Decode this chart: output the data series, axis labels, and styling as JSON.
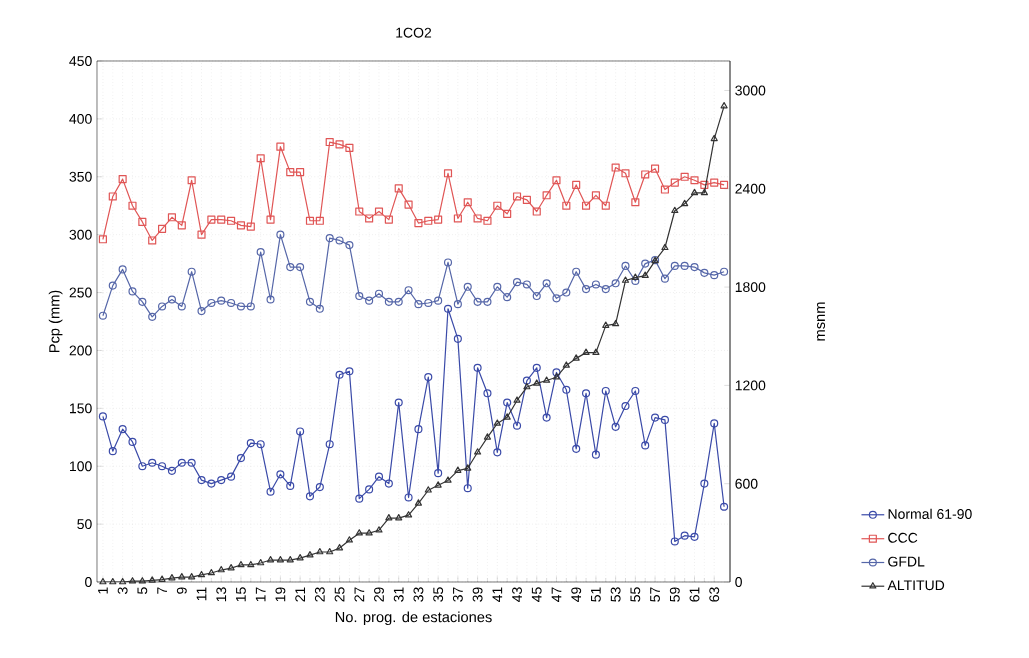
{
  "chart_data": {
    "type": "line",
    "title": "1CO2",
    "xlabel": "No. prog. de estaciones",
    "ylabel": "Pcp (mm)",
    "y2label": "msnm",
    "x": [
      1,
      2,
      3,
      4,
      5,
      6,
      7,
      8,
      9,
      10,
      11,
      12,
      13,
      14,
      15,
      16,
      17,
      18,
      19,
      20,
      21,
      22,
      23,
      24,
      25,
      26,
      27,
      28,
      29,
      30,
      31,
      32,
      33,
      34,
      35,
      36,
      37,
      38,
      39,
      40,
      41,
      42,
      43,
      44,
      45,
      46,
      47,
      48,
      49,
      50,
      51,
      52,
      53,
      54,
      55,
      56,
      57,
      58,
      59,
      60,
      61,
      62,
      63,
      64
    ],
    "xlim": [
      0.4,
      64.6
    ],
    "xticks": [
      1,
      3,
      5,
      7,
      9,
      11,
      13,
      15,
      17,
      19,
      21,
      23,
      25,
      27,
      29,
      31,
      33,
      35,
      37,
      39,
      41,
      43,
      45,
      47,
      49,
      51,
      53,
      55,
      57,
      59,
      61,
      63
    ],
    "ylim": [
      0,
      450
    ],
    "yticks": [
      0,
      50,
      100,
      150,
      200,
      250,
      300,
      350,
      400,
      450
    ],
    "y2lim": [
      0,
      3180
    ],
    "y2ticks": [
      0,
      600,
      1200,
      1800,
      2400,
      3000
    ],
    "grid": true,
    "legend": "right",
    "series": [
      {
        "name": "Normal 61-90",
        "color": "#3a4aa8",
        "marker": "circle",
        "values": [
          143,
          113,
          132,
          121,
          100,
          103,
          100,
          96,
          103,
          103,
          88,
          85,
          88,
          91,
          107,
          120,
          119,
          78,
          93,
          83,
          130,
          74,
          82,
          119,
          179,
          182,
          72,
          80,
          91,
          85,
          155,
          73,
          132,
          177,
          94,
          236,
          210,
          81,
          185,
          163,
          112,
          155,
          135,
          174,
          185,
          142,
          181,
          166,
          115,
          163,
          110,
          165,
          134,
          152,
          165,
          118,
          142,
          140,
          35,
          40,
          39,
          85,
          137,
          65
        ]
      },
      {
        "name": "CCC",
        "color": "#e05555",
        "marker": "square",
        "values": [
          296,
          333,
          348,
          325,
          311,
          295,
          305,
          315,
          308,
          347,
          300,
          313,
          313,
          312,
          308,
          307,
          366,
          313,
          376,
          354,
          354,
          312,
          312,
          380,
          378,
          375,
          320,
          314,
          320,
          313,
          340,
          326,
          310,
          312,
          313,
          353,
          314,
          328,
          314,
          312,
          325,
          318,
          333,
          330,
          320,
          334,
          347,
          325,
          343,
          325,
          334,
          325,
          358,
          353,
          328,
          352,
          357,
          339,
          345,
          350,
          347,
          343,
          345,
          343
        ]
      },
      {
        "name": "GFDL",
        "color": "#5566a8",
        "marker": "circle",
        "values": [
          230,
          256,
          270,
          251,
          242,
          229,
          238,
          244,
          238,
          268,
          234,
          241,
          243,
          241,
          238,
          238,
          285,
          244,
          300,
          272,
          272,
          242,
          236,
          297,
          295,
          291,
          247,
          243,
          249,
          242,
          242,
          252,
          240,
          241,
          243,
          276,
          240,
          255,
          242,
          242,
          255,
          246,
          259,
          257,
          247,
          258,
          245,
          250,
          268,
          253,
          257,
          253,
          258,
          273,
          260,
          275,
          278,
          262,
          273,
          273,
          272,
          267,
          265,
          268
        ]
      },
      {
        "name": "ALTITUD",
        "color": "#333333",
        "marker": "triangle",
        "axis": "y2",
        "values": [
          0,
          0,
          0,
          5,
          5,
          10,
          15,
          24,
          30,
          30,
          43,
          55,
          73,
          85,
          104,
          104,
          116,
          134,
          134,
          134,
          146,
          164,
          183,
          183,
          207,
          255,
          298,
          298,
          316,
          390,
          390,
          408,
          480,
          560,
          590,
          620,
          680,
          694,
          792,
          883,
          968,
          1005,
          1108,
          1190,
          1212,
          1230,
          1250,
          1322,
          1365,
          1400,
          1400,
          1565,
          1575,
          1840,
          1858,
          1870,
          1960,
          2040,
          2266,
          2308,
          2375,
          2375,
          2705,
          2905
        ]
      }
    ]
  }
}
